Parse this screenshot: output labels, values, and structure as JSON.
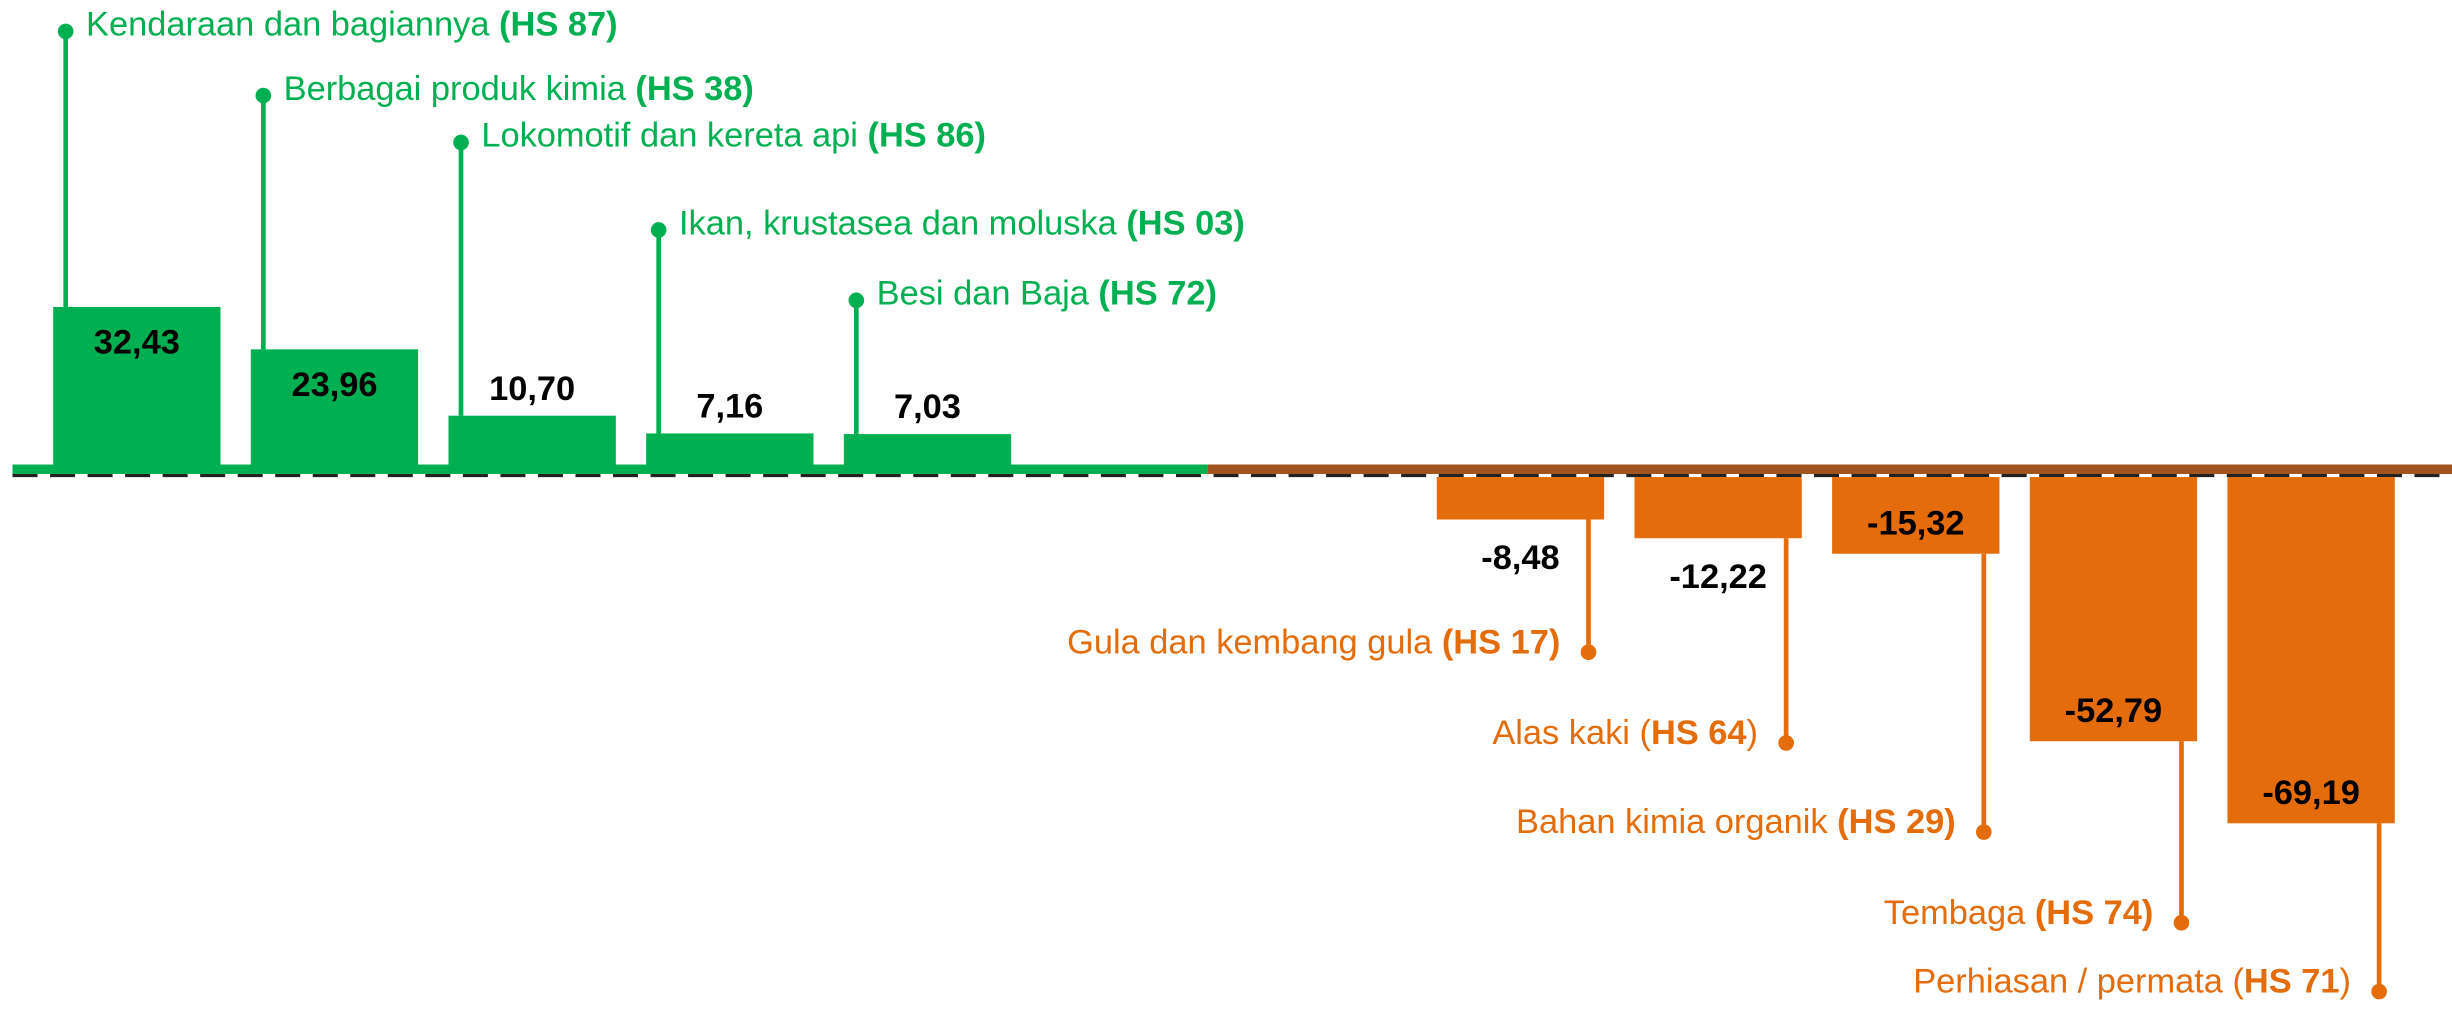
{
  "chart_data": {
    "type": "bar",
    "categories": [
      {
        "name": "Kendaraan dan bagiannya ",
        "code": "(HS 87)"
      },
      {
        "name": "Berbagai produk kimia ",
        "code": "(HS 38)"
      },
      {
        "name": "Lokomotif dan kereta api ",
        "code": "(HS 86)"
      },
      {
        "name": "Ikan, krustasea dan moluska ",
        "code": "(HS 03)"
      },
      {
        "name": "Besi dan Baja ",
        "code": "(HS 72)"
      },
      {
        "name": "Gula dan kembang gula ",
        "code": "(HS 17)"
      },
      {
        "name": "Alas kaki (",
        "code": "HS 64",
        "suffix": ")"
      },
      {
        "name": "Bahan kimia organik ",
        "code": "(HS 29)"
      },
      {
        "name": "Tembaga ",
        "code": "(HS 74)"
      },
      {
        "name": "Perhiasan / permata (",
        "code": "HS 71",
        "suffix": ")"
      }
    ],
    "values": [
      32.43,
      23.96,
      10.7,
      7.16,
      7.03,
      -8.48,
      -12.22,
      -15.32,
      -52.79,
      -69.19
    ],
    "value_labels": [
      "32,43",
      "23,96",
      "10,70",
      "7,16",
      "7,03",
      "-8,48",
      "-12,22",
      "-15,32",
      "-52,79",
      "-69,19"
    ],
    "positive_color": "#00b050",
    "negative_color": "#e46c0a"
  }
}
